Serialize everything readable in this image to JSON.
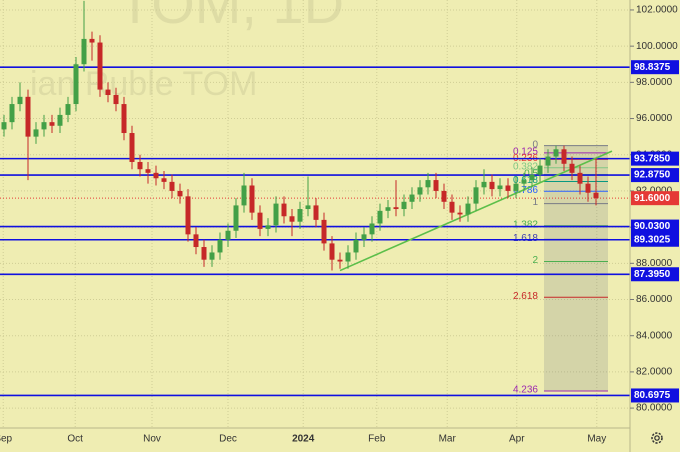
{
  "chart_data": {
    "type": "candlestick",
    "watermark": [
      "TOM, 1D",
      "ian Ruble TOM"
    ],
    "xlim": [
      -0.5,
      78.25
    ],
    "xticks": [
      {
        "value": -0.1,
        "label": "Sep"
      },
      {
        "value": 8.9,
        "label": "Oct"
      },
      {
        "value": 18.5,
        "label": "Nov"
      },
      {
        "value": 28,
        "label": "Dec"
      },
      {
        "value": 37.4,
        "label": "2024"
      },
      {
        "value": 46.6,
        "label": "Feb"
      },
      {
        "value": 55.4,
        "label": "Mar"
      },
      {
        "value": 64.1,
        "label": "Apr"
      },
      {
        "value": 74.1,
        "label": "May"
      }
    ],
    "ylim": [
      78.9,
      102.55
    ],
    "yticks": [
      {
        "value": 80,
        "label": "80.0000"
      },
      {
        "value": 82,
        "label": "82.0000"
      },
      {
        "value": 84,
        "label": "84.0000"
      },
      {
        "value": 86,
        "label": "86.0000"
      },
      {
        "value": 88,
        "label": "88.0000"
      },
      {
        "value": 90,
        "label": "90.0000"
      },
      {
        "value": 92,
        "label": "92.0000"
      },
      {
        "value": 94,
        "label": "94.0000"
      },
      {
        "value": 96,
        "label": "96.0000"
      },
      {
        "value": 98,
        "label": "98.0000"
      },
      {
        "value": 100,
        "label": "100.0000"
      },
      {
        "value": 102,
        "label": "102.0000"
      }
    ],
    "grid": true,
    "up_color": "#43a047",
    "down_color": "#c62828",
    "open": [
      95.4,
      95.8,
      96.8,
      97.2,
      95.0,
      95.4,
      95.8,
      95.6,
      96.2,
      96.8,
      99.0,
      100.4,
      100.2,
      97.6,
      97.3,
      96.8,
      95.2,
      93.6,
      93.2,
      93.0,
      92.7,
      92.5,
      92.0,
      91.7,
      89.6,
      88.9,
      88.2,
      88.6,
      89.3,
      89.8,
      91.2,
      92.3,
      90.8,
      89.9,
      90.1,
      91.3,
      90.6,
      90.3,
      91.0,
      91.2,
      90.4,
      89.1,
      88.2,
      88.1,
      88.6,
      89.3,
      89.6,
      90.2,
      90.9,
      91.1,
      91.0,
      91.4,
      91.8,
      92.2,
      92.6,
      92.0,
      91.4,
      90.8,
      90.7,
      91.3,
      92.2,
      92.5,
      92.1,
      92.3,
      92.0,
      92.4,
      92.6,
      92.9,
      93.4,
      93.9,
      94.3,
      93.5,
      93.0,
      92.4,
      91.9
    ],
    "high": [
      96.2,
      97.2,
      98.0,
      97.6,
      95.8,
      96.2,
      96.2,
      96.6,
      97.2,
      99.4,
      102.5,
      100.8,
      100.6,
      98.0,
      97.7,
      97.2,
      95.6,
      94.0,
      93.6,
      93.4,
      93.1,
      92.9,
      92.4,
      92.1,
      90.0,
      89.3,
      89.0,
      89.7,
      90.2,
      91.6,
      93.0,
      92.7,
      91.2,
      90.5,
      91.7,
      91.7,
      91.0,
      91.4,
      92.8,
      91.6,
      90.8,
      89.5,
      88.6,
      89.0,
      89.7,
      90.0,
      90.6,
      91.3,
      91.5,
      92.6,
      91.8,
      92.2,
      92.6,
      93.0,
      93.0,
      92.4,
      91.8,
      91.2,
      91.7,
      92.6,
      93.2,
      92.9,
      92.7,
      92.7,
      92.8,
      93.0,
      93.3,
      93.8,
      94.3,
      94.5,
      94.5,
      93.9,
      93.4,
      92.8,
      93.8
    ],
    "low": [
      95.0,
      95.4,
      96.4,
      92.6,
      94.6,
      95.0,
      95.2,
      95.2,
      95.8,
      96.4,
      98.6,
      99.2,
      97.2,
      96.9,
      96.4,
      94.8,
      93.2,
      92.8,
      92.4,
      92.3,
      92.1,
      91.6,
      91.3,
      89.2,
      88.5,
      87.8,
      87.8,
      88.2,
      88.9,
      89.4,
      90.8,
      90.4,
      89.5,
      89.5,
      89.7,
      90.2,
      89.5,
      89.9,
      90.6,
      90.0,
      88.7,
      87.6,
      87.7,
      87.7,
      88.2,
      88.9,
      89.2,
      89.8,
      90.5,
      90.6,
      90.6,
      91.0,
      91.4,
      91.8,
      91.6,
      91.0,
      90.4,
      90.3,
      90.3,
      90.9,
      91.8,
      91.7,
      91.7,
      91.6,
      91.6,
      92.0,
      92.2,
      92.5,
      93.0,
      93.5,
      93.1,
      92.6,
      91.8,
      91.4,
      91.2
    ],
    "close": [
      95.8,
      96.8,
      97.2,
      95.0,
      95.4,
      95.8,
      95.6,
      96.2,
      96.8,
      99.0,
      100.4,
      100.2,
      97.6,
      97.3,
      96.8,
      95.2,
      93.6,
      93.2,
      93.0,
      92.7,
      92.5,
      92.0,
      91.7,
      89.6,
      88.9,
      88.2,
      88.6,
      89.3,
      89.8,
      91.2,
      92.3,
      90.8,
      89.9,
      90.1,
      91.3,
      90.6,
      90.3,
      91.0,
      91.2,
      90.4,
      89.1,
      88.2,
      88.1,
      88.6,
      89.3,
      89.6,
      90.2,
      90.9,
      91.1,
      91.0,
      91.4,
      91.8,
      92.2,
      92.6,
      92.0,
      91.4,
      90.8,
      90.7,
      91.3,
      92.2,
      92.5,
      92.1,
      92.3,
      92.0,
      92.4,
      92.6,
      92.9,
      93.4,
      93.9,
      94.3,
      93.5,
      93.0,
      92.4,
      91.9,
      91.6
    ],
    "levels": [
      {
        "value": 98.8375,
        "label": "98.8375",
        "color": "#1010e0"
      },
      {
        "value": 93.785,
        "label": "93.7850",
        "color": "#1010e0"
      },
      {
        "value": 92.875,
        "label": "92.8750",
        "color": "#1010e0"
      },
      {
        "value": 91.6,
        "label": "91.6000",
        "color": "#e53935"
      },
      {
        "value": 90.03,
        "label": "90.0300",
        "color": "#1010e0"
      },
      {
        "value": 89.3025,
        "label": "89.3025",
        "color": "#1010e0"
      },
      {
        "value": 87.395,
        "label": "87.3950",
        "color": "#1010e0"
      },
      {
        "value": 80.6975,
        "label": "80.6975",
        "color": "#1010e0"
      }
    ],
    "trendline": {
      "start": [
        42,
        87.6
      ],
      "end": [
        76,
        94.2
      ],
      "color": "#5cbf4a"
    },
    "fib": {
      "from_index": 68,
      "to_index": 75,
      "start": 94.5,
      "end": 91.3,
      "levels": [
        {
          "ratio": 0,
          "color": "#787b86"
        },
        {
          "ratio": 0.125,
          "color": "#9c27b0"
        },
        {
          "ratio": 0.236,
          "color": "#e53935"
        },
        {
          "ratio": 0.382,
          "color": "#81c784"
        },
        {
          "ratio": 0.5,
          "color": "#4caf50"
        },
        {
          "ratio": 0.618,
          "color": "#089981"
        },
        {
          "ratio": 0.786,
          "color": "#2962ff"
        },
        {
          "ratio": 1,
          "color": "#787b86"
        },
        {
          "ratio": 1.382,
          "color": "#4caf50"
        },
        {
          "ratio": 1.618,
          "color": "#3f3fb0"
        },
        {
          "ratio": 2,
          "color": "#4caf50"
        },
        {
          "ratio": 2.618,
          "color": "#c62828"
        },
        {
          "ratio": 4.236,
          "color": "#9c27b0"
        }
      ]
    }
  }
}
